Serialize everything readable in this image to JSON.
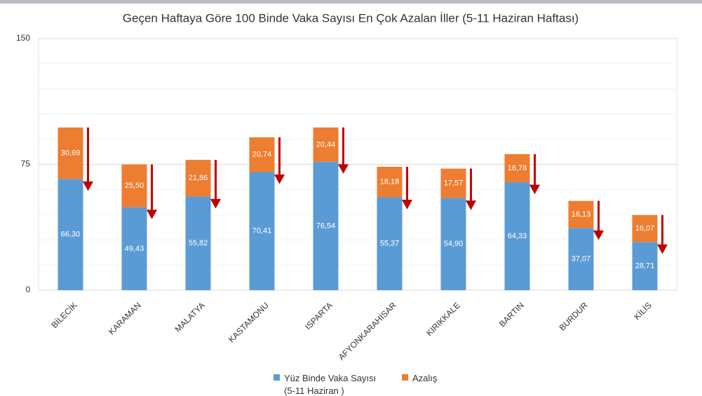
{
  "chart_data": {
    "type": "stacked-bar",
    "title": "Geçen Haftaya Göre 100 Binde Vaka Sayısı En Çok Azalan İller (5-11 Haziran Haftası)",
    "categories": [
      "BİLECİK",
      "KARAMAN",
      "MALATYA",
      "KASTAMONU",
      "ISPARTA",
      "AFYONKARAHİSAR",
      "KIRIKKALE",
      "BARTIN",
      "BURDUR",
      "KİLİS"
    ],
    "series": [
      {
        "name": "Yüz Binde Vaka Sayısı (5-11 Haziran )",
        "color": "#5b9bd5",
        "values": [
          66.3,
          49.43,
          55.82,
          70.41,
          76.54,
          55.37,
          54.9,
          64.33,
          37.07,
          28.71
        ],
        "value_labels": [
          "66,30",
          "49,43",
          "55,82",
          "70,41",
          "76,54",
          "55,37",
          "54,90",
          "64,33",
          "37,07",
          "28,71"
        ]
      },
      {
        "name": "Azalış",
        "color": "#ed7d31",
        "values": [
          30.69,
          25.5,
          21.86,
          20.74,
          20.44,
          18.18,
          17.57,
          16.78,
          16.13,
          16.07
        ],
        "value_labels": [
          "30,69",
          "25,50",
          "21,86",
          "20,74",
          "20,44",
          "18,18",
          "17,57",
          "16,78",
          "16,13",
          "16,07"
        ]
      }
    ],
    "arrow_color": "#c00000",
    "ylim": [
      0,
      150
    ],
    "yticks": [
      0,
      75,
      150
    ],
    "grid": true
  }
}
